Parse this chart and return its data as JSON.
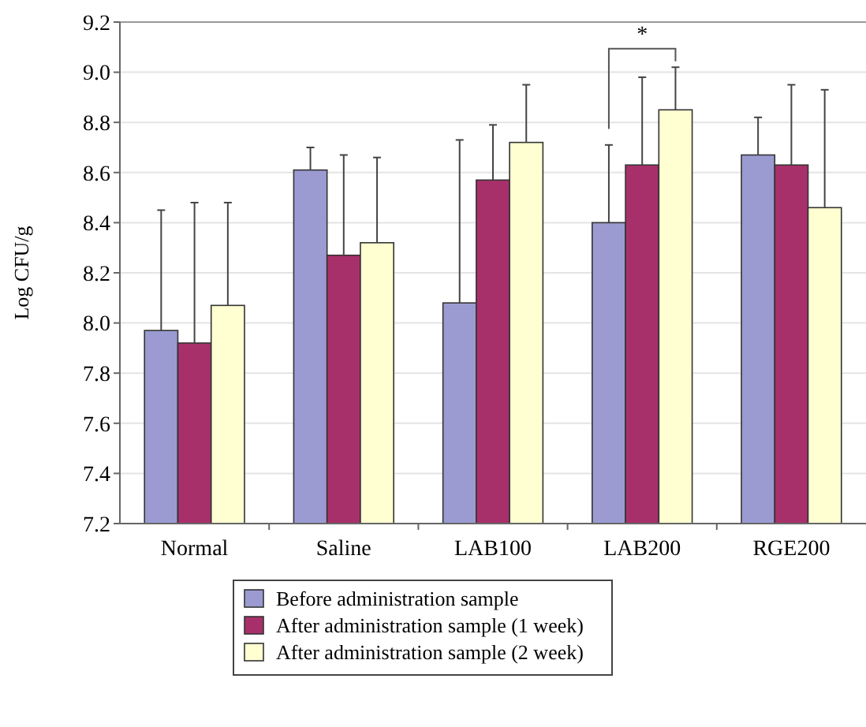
{
  "chart_data": {
    "type": "bar",
    "ylabel": "Log CFU/g",
    "categories": [
      "Normal",
      "Saline",
      "LAB100",
      "LAB200",
      "RGE200"
    ],
    "series": [
      {
        "name": "Before administration sample",
        "color": "#9b9bd2",
        "values": [
          7.97,
          8.61,
          8.08,
          8.4,
          8.67
        ],
        "errors": [
          [
            7.97,
            8.45
          ],
          [
            8.61,
            8.7
          ],
          [
            8.08,
            8.73
          ],
          [
            8.4,
            8.71
          ],
          [
            8.67,
            8.82
          ]
        ]
      },
      {
        "name": "After administration sample (1 week)",
        "color": "#a8306a",
        "values": [
          7.92,
          8.27,
          8.57,
          8.63,
          8.63
        ],
        "errors": [
          [
            7.92,
            8.48
          ],
          [
            8.27,
            8.67
          ],
          [
            8.57,
            8.79
          ],
          [
            8.63,
            8.98
          ],
          [
            8.63,
            8.95
          ]
        ]
      },
      {
        "name": "After administration sample (2 week)",
        "color": "#ffffd2",
        "values": [
          8.07,
          8.32,
          8.72,
          8.85,
          8.46
        ],
        "errors": [
          [
            8.07,
            8.48
          ],
          [
            8.32,
            8.66
          ],
          [
            8.72,
            8.95
          ],
          [
            8.85,
            9.02
          ],
          [
            8.46,
            8.93
          ]
        ]
      }
    ],
    "ylim": [
      7.2,
      9.2
    ],
    "yticks": [
      {
        "value": 7.2,
        "label": "7.2"
      },
      {
        "value": 7.4,
        "label": "7.4"
      },
      {
        "value": 7.6,
        "label": "7.6"
      },
      {
        "value": 7.8,
        "label": "7.8"
      },
      {
        "value": 8.0,
        "label": "8.0"
      },
      {
        "value": 8.2,
        "label": "8.2"
      },
      {
        "value": 8.4,
        "label": "8.4"
      },
      {
        "value": 8.6,
        "label": "8.6"
      },
      {
        "value": 8.8,
        "label": "8.8"
      },
      {
        "value": 9.0,
        "label": "9.0"
      },
      {
        "value": 9.2,
        "label": "9.2"
      }
    ],
    "grid": "y",
    "legend": "bottom",
    "annotations": [
      "*"
    ]
  }
}
